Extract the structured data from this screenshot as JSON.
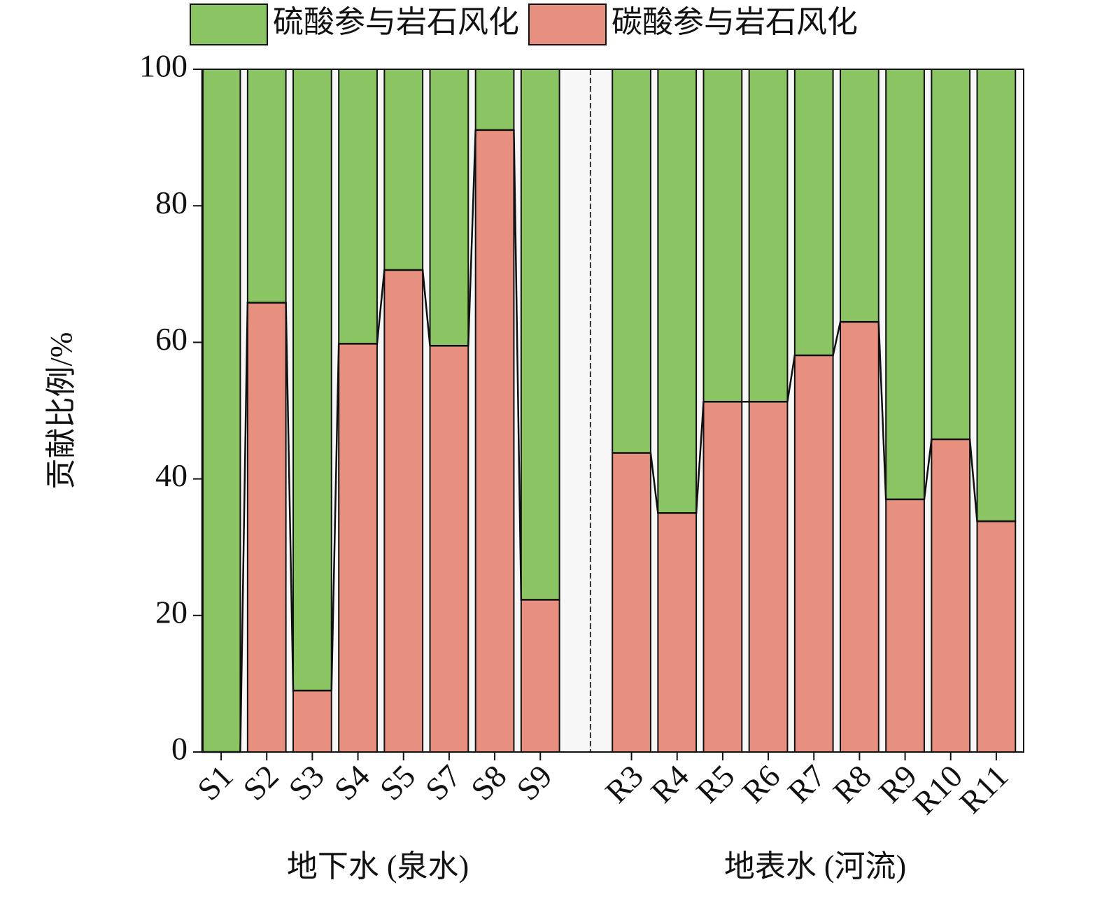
{
  "chart_data": {
    "type": "stacked-bar",
    "y_label": "贡献比例/%",
    "annotations": [
      "地下水 (泉水)",
      "地表水 (河流)"
    ],
    "categories": [
      "S1",
      "S2",
      "S3",
      "S4",
      "S5",
      "S7",
      "S8",
      "S9",
      null,
      "R3",
      "R4",
      "R5",
      "R6",
      "R7",
      "R8",
      "R9",
      "R10",
      "R11"
    ],
    "series": [
      {
        "name": "硫酸参与岩石风化",
        "color": "#8ac463",
        "values": [
          100,
          34.2,
          91,
          40.2,
          29.4,
          40.5,
          8.9,
          77.7,
          null,
          56.2,
          65,
          48.7,
          48.7,
          41.9,
          37,
          63,
          54.2,
          66.2
        ]
      },
      {
        "name": "碳酸参与岩石风化",
        "color": "#e8907f",
        "values": [
          0,
          65.8,
          9,
          59.8,
          70.6,
          59.5,
          91.1,
          22.3,
          null,
          43.8,
          35,
          51.3,
          51.3,
          58.1,
          63,
          37,
          45.8,
          33.8
        ]
      }
    ],
    "ylim": [
      0,
      100
    ],
    "yticks": [
      0,
      20,
      40,
      60,
      80,
      100
    ],
    "legend": "top"
  }
}
